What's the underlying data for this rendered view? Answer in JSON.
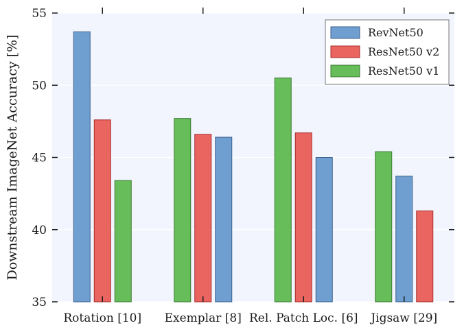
{
  "chart_data": {
    "type": "bar",
    "ylabel": "Downstream ImageNet Accuracy [%]",
    "ylim": [
      35,
      55
    ],
    "yticks": [
      35,
      40,
      45,
      50,
      55
    ],
    "grid": "horizontal",
    "legend_position": "top-right",
    "colors": {
      "RevNet50": "#6f9fd0",
      "ResNet50 v2": "#ea6560",
      "ResNet50 v1": "#66bd5a",
      "plot_background": "#f2f5fd"
    },
    "legend": [
      "RevNet50",
      "ResNet50 v2",
      "ResNet50 v1"
    ],
    "groups": [
      {
        "category": "Rotation [10]",
        "bars": [
          {
            "series": "RevNet50",
            "value": 53.7
          },
          {
            "series": "ResNet50 v2",
            "value": 47.6
          },
          {
            "series": "ResNet50 v1",
            "value": 43.4
          }
        ]
      },
      {
        "category": "Exemplar [8]",
        "bars": [
          {
            "series": "ResNet50 v1",
            "value": 47.7
          },
          {
            "series": "ResNet50 v2",
            "value": 46.6
          },
          {
            "series": "RevNet50",
            "value": 46.4
          }
        ]
      },
      {
        "category": "Rel. Patch Loc. [6]",
        "bars": [
          {
            "series": "ResNet50 v1",
            "value": 50.5
          },
          {
            "series": "ResNet50 v2",
            "value": 46.7
          },
          {
            "series": "RevNet50",
            "value": 45.0
          }
        ]
      },
      {
        "category": "Jigsaw [29]",
        "bars": [
          {
            "series": "ResNet50 v1",
            "value": 45.4
          },
          {
            "series": "RevNet50",
            "value": 43.7
          },
          {
            "series": "ResNet50 v2",
            "value": 41.3
          }
        ]
      }
    ]
  }
}
